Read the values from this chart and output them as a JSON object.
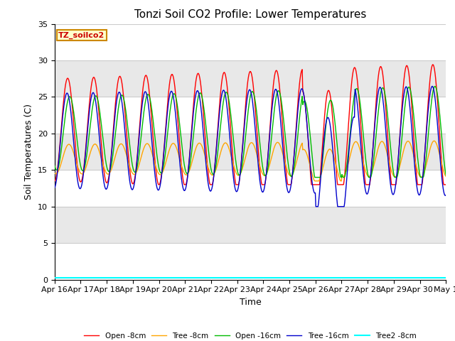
{
  "title": "Tonzi Soil CO2 Profile: Lower Temperatures",
  "xlabel": "Time",
  "ylabel": "Soil Temperatures (C)",
  "ylim": [
    0,
    35
  ],
  "n_days": 15,
  "x_tick_labels": [
    "Apr 16",
    "Apr 17",
    "Apr 18",
    "Apr 19",
    "Apr 20",
    "Apr 21",
    "Apr 22",
    "Apr 23",
    "Apr 24",
    "Apr 25",
    "Apr 26",
    "Apr 27",
    "Apr 28",
    "Apr 29",
    "Apr 30",
    "May 1"
  ],
  "label_box_text": "TZ_soilco2",
  "series": {
    "open_8cm": {
      "label": "Open -8cm",
      "color": "#ff0000"
    },
    "tree_8cm": {
      "label": "Tree -8cm",
      "color": "#ffa500"
    },
    "open_16cm": {
      "label": "Open -16cm",
      "color": "#00bb00"
    },
    "tree_16cm": {
      "label": "Tree -16cm",
      "color": "#0000cc"
    },
    "tree2_8cm": {
      "label": "Tree2 -8cm",
      "color": "#00ffff"
    }
  },
  "plot_bg_color": "#e8e8e8",
  "band_colors": [
    "#ffffff",
    "#e8e8e8"
  ],
  "grid_color": "#cccccc",
  "title_fontsize": 11,
  "axis_label_fontsize": 9,
  "tick_fontsize": 8
}
